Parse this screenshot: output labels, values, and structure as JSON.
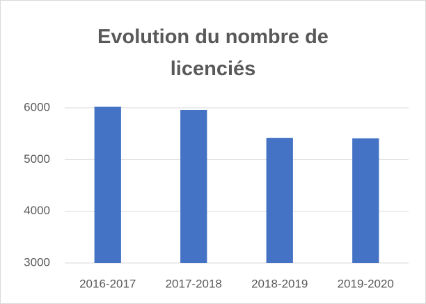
{
  "chart_data": {
    "type": "bar",
    "title": "Evolution du nombre de licenciés",
    "categories": [
      "2016-2017",
      "2017-2018",
      "2018-2019",
      "2019-2020"
    ],
    "values": [
      6020,
      5960,
      5420,
      5410
    ],
    "color": "#4472c4",
    "ylim": [
      3000,
      6000
    ],
    "yticks": [
      3000,
      4000,
      5000,
      6000
    ],
    "grid": true
  }
}
